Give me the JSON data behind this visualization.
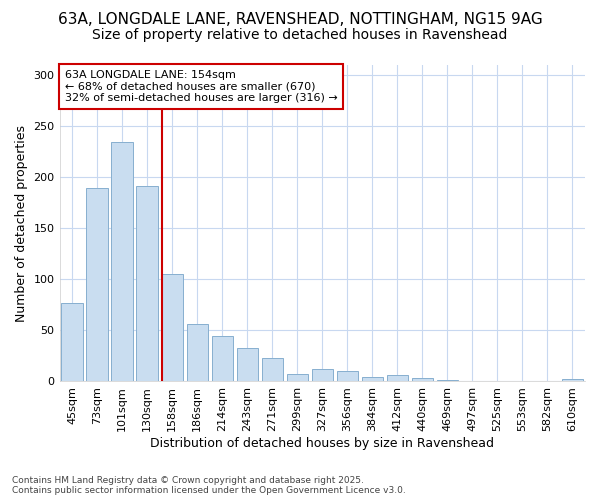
{
  "title_line1": "63A, LONGDALE LANE, RAVENSHEAD, NOTTINGHAM, NG15 9AG",
  "title_line2": "Size of property relative to detached houses in Ravenshead",
  "xlabel": "Distribution of detached houses by size in Ravenshead",
  "ylabel": "Number of detached properties",
  "categories": [
    "45sqm",
    "73sqm",
    "101sqm",
    "130sqm",
    "158sqm",
    "186sqm",
    "214sqm",
    "243sqm",
    "271sqm",
    "299sqm",
    "327sqm",
    "356sqm",
    "384sqm",
    "412sqm",
    "440sqm",
    "469sqm",
    "497sqm",
    "525sqm",
    "553sqm",
    "582sqm",
    "610sqm"
  ],
  "values": [
    77,
    190,
    235,
    191,
    105,
    56,
    45,
    33,
    23,
    7,
    12,
    10,
    4,
    6,
    3,
    1,
    0,
    0,
    0,
    0,
    2
  ],
  "bar_color": "#c9ddf0",
  "bar_edge_color": "#87afcf",
  "reference_line_color": "#cc0000",
  "annotation_line1": "63A LONGDALE LANE: 154sqm",
  "annotation_line2": "← 68% of detached houses are smaller (670)",
  "annotation_line3": "32% of semi-detached houses are larger (316) →",
  "annotation_box_color": "#cc0000",
  "ylim": [
    0,
    310
  ],
  "yticks": [
    0,
    50,
    100,
    150,
    200,
    250,
    300
  ],
  "footer_text": "Contains HM Land Registry data © Crown copyright and database right 2025.\nContains public sector information licensed under the Open Government Licence v3.0.",
  "bg_color": "#ffffff",
  "plot_bg_color": "#ffffff",
  "grid_color": "#c8d8f0",
  "title1_fontsize": 11,
  "title2_fontsize": 10,
  "axis_label_fontsize": 9,
  "tick_fontsize": 8,
  "annotation_fontsize": 8
}
